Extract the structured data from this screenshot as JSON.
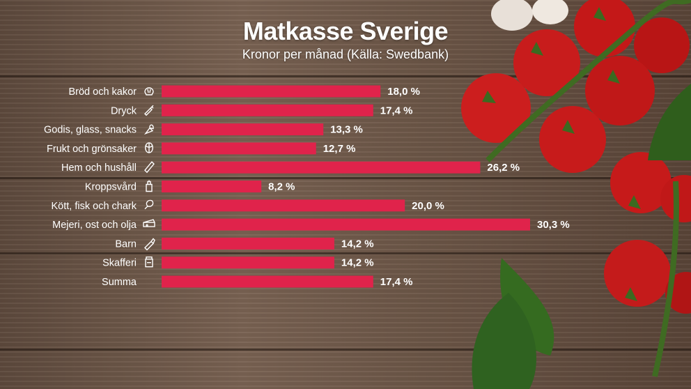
{
  "title": "Matkasse Sverige",
  "subtitle": "Kronor per månad (Källa: Swedbank)",
  "colors": {
    "bar": "#e0234b",
    "text": "#ffffff"
  },
  "chart_data": {
    "type": "bar",
    "orientation": "horizontal",
    "title": "Matkasse Sverige",
    "subtitle": "Kronor per månad (Källa: Swedbank)",
    "categories": [
      "Bröd och kakor",
      "Dryck",
      "Godis, glass, snacks",
      "Frukt och grönsaker",
      "Hem och hushåll",
      "Kroppsvård",
      "Kött, fisk och chark",
      "Mejeri, ost och olja",
      "Barn",
      "Skafferi",
      "Summa"
    ],
    "values": [
      18.0,
      17.4,
      13.3,
      12.7,
      26.2,
      8.2,
      20.0,
      30.3,
      14.2,
      14.2,
      17.4
    ],
    "value_labels": [
      "18,0 %",
      "17,4 %",
      "13,3 %",
      "12,7 %",
      "26,2 %",
      "8,2 %",
      "20,0 %",
      "30,3 %",
      "14,2 %",
      "14,2 %",
      "17,4 %"
    ],
    "icons": [
      "bread-icon",
      "bottle-icon",
      "ice-cream-icon",
      "cabbage-icon",
      "sponge-icon",
      "lotion-icon",
      "drumstick-icon",
      "cheese-icon",
      "baby-bottle-icon",
      "jar-icon",
      ""
    ],
    "xlim": [
      0,
      30.3
    ],
    "grid": false,
    "legend": "none"
  }
}
